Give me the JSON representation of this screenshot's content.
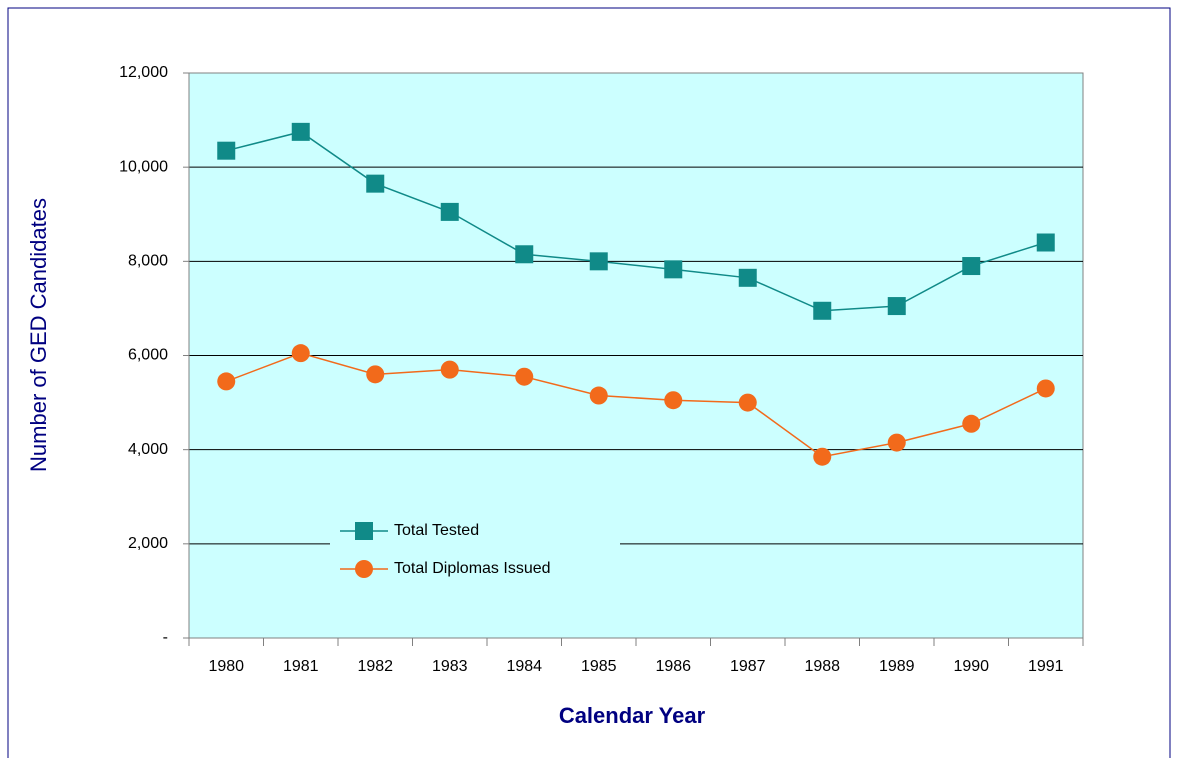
{
  "chart_data": {
    "type": "line",
    "xlabel": "Calendar Year",
    "ylabel": "Number of GED Candidates",
    "categories": [
      "1980",
      "1981",
      "1982",
      "1983",
      "1984",
      "1985",
      "1986",
      "1987",
      "1988",
      "1989",
      "1990",
      "1991"
    ],
    "series": [
      {
        "name": "Total Tested",
        "color": "#108a88",
        "marker": "square",
        "values": [
          10350,
          10750,
          9650,
          9050,
          8150,
          8000,
          7830,
          7650,
          6950,
          7050,
          7900,
          8400
        ]
      },
      {
        "name": "Total Diplomas Issued",
        "color": "#f26a1b",
        "marker": "circle",
        "values": [
          5450,
          6050,
          5600,
          5700,
          5550,
          5150,
          5050,
          5000,
          3850,
          4150,
          4550,
          5300
        ]
      }
    ],
    "ylim": [
      0,
      12000
    ],
    "yticks": [
      {
        "value": 0,
        "label": "-"
      },
      {
        "value": 2000,
        "label": "2,000"
      },
      {
        "value": 4000,
        "label": "4,000"
      },
      {
        "value": 6000,
        "label": "6,000"
      },
      {
        "value": 8000,
        "label": "8,000"
      },
      {
        "value": 10000,
        "label": "10,000"
      },
      {
        "value": 12000,
        "label": "12,000"
      }
    ],
    "grid": true,
    "plot_background": "#ccffff"
  }
}
